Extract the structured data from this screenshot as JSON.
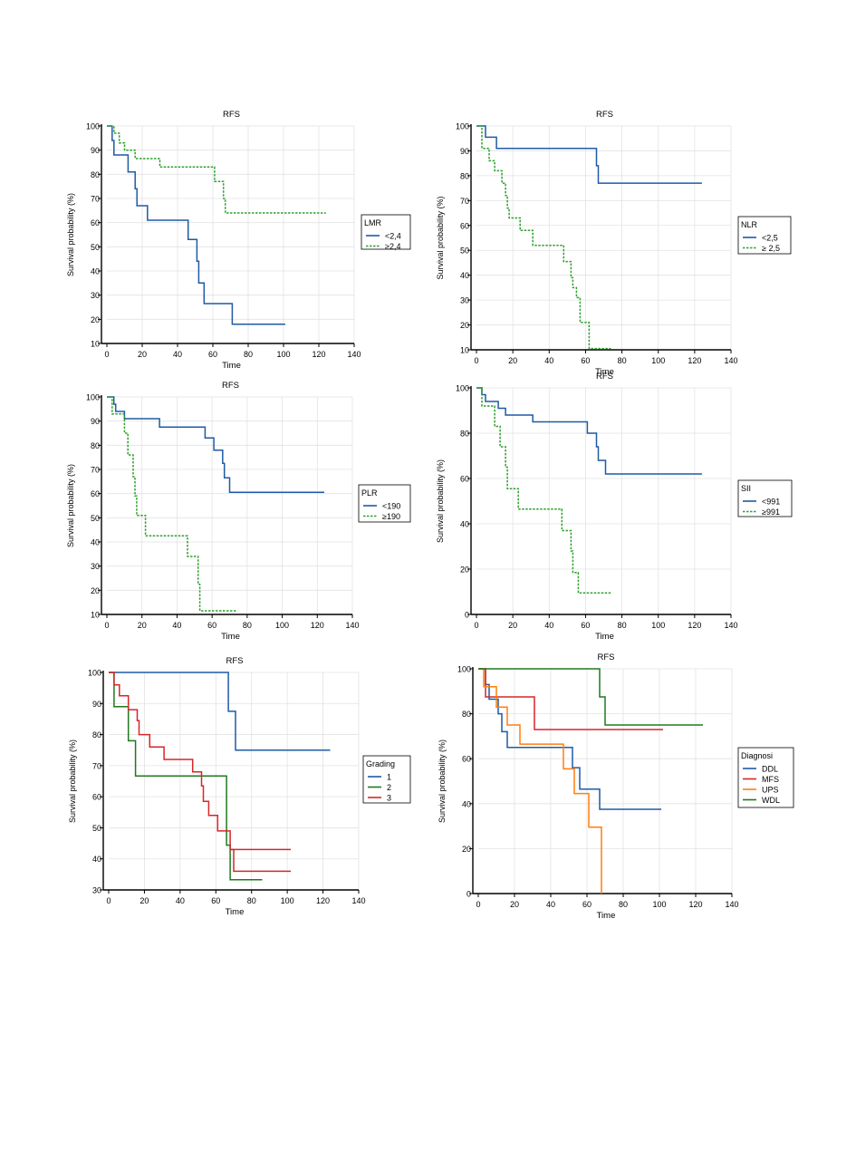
{
  "chart_data": [
    {
      "type": "line",
      "title": "RFS",
      "xlabel": "Time",
      "ylabel": "Survival probability (%)",
      "xlim": [
        0,
        140
      ],
      "ylim": [
        10,
        100
      ],
      "x_ticks": [
        0,
        20,
        40,
        60,
        80,
        100,
        120,
        140
      ],
      "y_ticks": [
        10,
        20,
        30,
        40,
        50,
        60,
        70,
        80,
        90,
        100
      ],
      "grid": true,
      "legend_title": "LMR",
      "legend_position": "right",
      "series": [
        {
          "name": "<2,4",
          "color": "#1f5aa6",
          "dashed": false,
          "x": [
            0,
            3,
            3,
            4,
            4,
            12,
            12,
            16,
            16,
            17,
            17,
            23,
            23,
            46,
            46,
            51,
            51,
            52,
            52,
            55,
            55,
            71,
            71,
            101
          ],
          "y": [
            100,
            100,
            94,
            94,
            88,
            88,
            81,
            81,
            74,
            74,
            67,
            67,
            61,
            61,
            53,
            53,
            44,
            44,
            35,
            35,
            26.5,
            26.5,
            18,
            18
          ]
        },
        {
          "name": "≥2,4",
          "color": "#2ca02c",
          "dashed": true,
          "x": [
            0,
            4,
            4,
            7,
            7,
            10,
            10,
            16,
            16,
            30,
            30,
            61,
            61,
            66,
            66,
            67,
            67,
            124
          ],
          "y": [
            100,
            100,
            97,
            97,
            93,
            93,
            90,
            90,
            86.5,
            86.5,
            83,
            83,
            77,
            77,
            70,
            70,
            64,
            64
          ]
        }
      ]
    },
    {
      "type": "line",
      "title": "RFS",
      "xlabel": "Time",
      "ylabel": "Survival probability (%)",
      "xlim": [
        0,
        140
      ],
      "ylim": [
        10,
        100
      ],
      "x_ticks": [
        0,
        20,
        40,
        60,
        80,
        100,
        120,
        140
      ],
      "y_ticks": [
        10,
        20,
        30,
        40,
        50,
        60,
        70,
        80,
        90,
        100
      ],
      "grid": true,
      "legend_title": "NLR",
      "legend_position": "right",
      "series": [
        {
          "name": "<2,5",
          "color": "#1f5aa6",
          "dashed": false,
          "x": [
            0,
            5,
            5,
            11,
            11,
            66,
            66,
            67,
            67,
            124
          ],
          "y": [
            100,
            100,
            95.5,
            95.5,
            91,
            91,
            84,
            84,
            77,
            77
          ]
        },
        {
          "name": "≥ 2,5",
          "color": "#2ca02c",
          "dashed": true,
          "x": [
            0,
            3,
            3,
            7,
            7,
            10,
            10,
            14,
            14,
            16,
            16,
            17,
            17,
            18,
            18,
            24,
            24,
            31,
            31,
            48,
            48,
            52,
            52,
            53,
            53,
            55,
            55,
            57,
            57,
            62,
            62,
            71,
            71,
            74
          ],
          "y": [
            100,
            100,
            91,
            91,
            86,
            86,
            82,
            82,
            77,
            77,
            72,
            72,
            67,
            67,
            63,
            63,
            58,
            58,
            52,
            52,
            45.5,
            45.5,
            39,
            39,
            35,
            35,
            31,
            31,
            21,
            21,
            10.5,
            10.5,
            10.5,
            10.5
          ]
        }
      ]
    },
    {
      "type": "line",
      "title": "RFS",
      "xlabel": "Time",
      "ylabel": "Survival probability (%)",
      "xlim": [
        0,
        140
      ],
      "ylim": [
        10,
        100
      ],
      "x_ticks": [
        0,
        20,
        40,
        60,
        80,
        100,
        120,
        140
      ],
      "y_ticks": [
        10,
        20,
        30,
        40,
        50,
        60,
        70,
        80,
        90,
        100
      ],
      "grid": true,
      "legend_title": "PLR",
      "legend_position": "right",
      "series": [
        {
          "name": "<190",
          "color": "#1f5aa6",
          "dashed": false,
          "x": [
            0,
            4,
            4,
            5,
            5,
            10,
            10,
            30,
            30,
            56,
            56,
            61,
            61,
            66,
            66,
            67,
            67,
            70,
            70,
            124
          ],
          "y": [
            100,
            100,
            97,
            97,
            94,
            94,
            91,
            91,
            87.5,
            87.5,
            83,
            83,
            78,
            78,
            72.5,
            72.5,
            66.5,
            66.5,
            60.5,
            60.5
          ]
        },
        {
          "name": "≥190",
          "color": "#2ca02c",
          "dashed": true,
          "x": [
            0,
            3,
            3,
            10,
            10,
            12,
            12,
            15,
            15,
            16,
            16,
            17,
            17,
            22,
            22,
            46,
            46,
            52,
            52,
            53,
            53,
            74
          ],
          "y": [
            100,
            100,
            93,
            93,
            85,
            85,
            76,
            76,
            67,
            67,
            59,
            59,
            51,
            51,
            42.5,
            42.5,
            34,
            34,
            22.5,
            22.5,
            11.5,
            11.5
          ]
        }
      ]
    },
    {
      "type": "line",
      "title": "RFS",
      "xlabel": "Time",
      "ylabel": "Survival probability (%)",
      "xlim": [
        0,
        140
      ],
      "ylim": [
        0,
        100
      ],
      "x_ticks": [
        0,
        20,
        40,
        60,
        80,
        100,
        120,
        140
      ],
      "y_ticks": [
        0,
        20,
        40,
        60,
        80,
        100
      ],
      "grid": true,
      "legend_title": "SII",
      "legend_position": "right",
      "series": [
        {
          "name": "<991",
          "color": "#1f5aa6",
          "dashed": false,
          "x": [
            0,
            3,
            3,
            5,
            5,
            12,
            12,
            16,
            16,
            31,
            31,
            61,
            61,
            66,
            66,
            67,
            67,
            69,
            69,
            71,
            71,
            124
          ],
          "y": [
            100,
            100,
            97,
            97,
            94,
            94,
            91,
            91,
            88,
            88,
            85,
            85,
            80,
            80,
            74,
            74,
            68,
            68,
            68,
            68,
            62,
            62
          ]
        },
        {
          "name": "≥991",
          "color": "#2ca02c",
          "dashed": true,
          "x": [
            0,
            3,
            3,
            10,
            10,
            13,
            13,
            16,
            16,
            17,
            17,
            23,
            23,
            47,
            47,
            52,
            52,
            53,
            53,
            56,
            56,
            74
          ],
          "y": [
            100,
            100,
            92,
            92,
            83,
            83,
            74,
            74,
            65,
            65,
            55.5,
            55.5,
            46.5,
            46.5,
            37,
            37,
            28,
            28,
            18.5,
            18.5,
            9.5,
            9.5
          ]
        }
      ]
    },
    {
      "type": "line",
      "title": "RFS",
      "xlabel": "Time",
      "ylabel": "Survival probability (%)",
      "xlim": [
        0,
        140
      ],
      "ylim": [
        30,
        100
      ],
      "x_ticks": [
        0,
        20,
        40,
        60,
        80,
        100,
        120,
        140
      ],
      "y_ticks": [
        30,
        40,
        50,
        60,
        70,
        80,
        90,
        100
      ],
      "grid": true,
      "legend_title": "Grading",
      "legend_position": "right",
      "series": [
        {
          "name": "1",
          "color": "#1f5aa6",
          "dashed": false,
          "x": [
            0,
            67,
            67,
            71,
            71,
            124
          ],
          "y": [
            100,
            100,
            87.5,
            87.5,
            75,
            75
          ]
        },
        {
          "name": "2",
          "color": "#1e7a1e",
          "dashed": false,
          "x": [
            0,
            3,
            3,
            11,
            11,
            15,
            15,
            66,
            66,
            68,
            68,
            86
          ],
          "y": [
            100,
            100,
            89,
            89,
            78,
            78,
            66.7,
            66.7,
            44.4,
            44.4,
            33.3,
            33.3
          ]
        },
        {
          "name": "3",
          "color": "#d62728",
          "dashed": false,
          "x": [
            0,
            3,
            3,
            6,
            6,
            11,
            11,
            16,
            16,
            17,
            17,
            23,
            23,
            31,
            31,
            47,
            47,
            52,
            52,
            53,
            53,
            56,
            56,
            61,
            61,
            68,
            68,
            102
          ],
          "y": [
            100,
            100,
            96,
            96,
            92.5,
            92.5,
            88,
            88,
            84.5,
            84.5,
            80,
            80,
            76,
            76,
            72,
            72,
            68,
            68,
            63.5,
            63.5,
            58.5,
            58.5,
            54,
            54,
            49,
            49,
            43,
            43
          ]
        },
        {
          "name": "3",
          "color": "#d62728",
          "dashed": false,
          "hidden_legend": true,
          "x": [
            68,
            68,
            70,
            70,
            102
          ],
          "y": [
            43,
            43,
            43,
            36,
            36
          ]
        }
      ]
    },
    {
      "type": "line",
      "title": "RFS",
      "xlabel": "Time",
      "ylabel": "Survival probability (%)",
      "xlim": [
        0,
        140
      ],
      "ylim": [
        0,
        100
      ],
      "x_ticks": [
        0,
        20,
        40,
        60,
        80,
        100,
        120,
        140
      ],
      "y_ticks": [
        0,
        20,
        40,
        60,
        80,
        100
      ],
      "grid": true,
      "legend_title": "Diagnosi",
      "legend_position": "right",
      "series": [
        {
          "name": "DDL",
          "color": "#1f5aa6",
          "dashed": false,
          "x": [
            0,
            4,
            4,
            6,
            6,
            11,
            11,
            13,
            13,
            16,
            16,
            17,
            17,
            52,
            52,
            56,
            56,
            67,
            67,
            101
          ],
          "y": [
            100,
            100,
            93,
            93,
            86.5,
            86.5,
            80,
            80,
            72,
            72,
            65,
            65,
            65,
            65,
            56,
            56,
            46.5,
            46.5,
            37.5,
            37.5
          ]
        },
        {
          "name": "MFS",
          "color": "#d62728",
          "dashed": false,
          "x": [
            0,
            4,
            4,
            31,
            31,
            102
          ],
          "y": [
            100,
            100,
            87.5,
            87.5,
            73,
            73
          ]
        },
        {
          "name": "UPS",
          "color": "#ff7f0e",
          "dashed": false,
          "x": [
            0,
            3,
            3,
            10,
            10,
            16,
            16,
            23,
            23,
            47,
            47,
            53,
            53,
            61,
            61,
            68,
            68
          ],
          "y": [
            100,
            100,
            92,
            92,
            83,
            83,
            75,
            75,
            66.5,
            66.5,
            55.5,
            55.5,
            44.5,
            44.5,
            29.5,
            29.5,
            0
          ]
        },
        {
          "name": "WDL",
          "color": "#1e7a1e",
          "dashed": false,
          "x": [
            0,
            67,
            67,
            70,
            70,
            124
          ],
          "y": [
            100,
            100,
            87.5,
            87.5,
            75,
            75
          ]
        }
      ]
    }
  ]
}
